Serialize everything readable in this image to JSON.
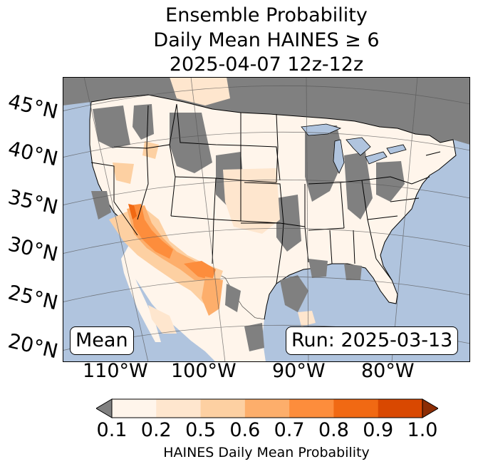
{
  "title": {
    "line1": "Ensemble Probability",
    "line2": "Daily Mean HAINES ≥ 6",
    "line3": "2025-04-07 12z-12z"
  },
  "map": {
    "latitude_labels": [
      "45°N",
      "40°N",
      "35°N",
      "30°N",
      "25°N",
      "20°N"
    ],
    "longitude_labels": [
      "110°W",
      "100°W",
      "90°W",
      "80°W"
    ],
    "mean_label": "Mean",
    "run_label": "Run: 2025-03-13",
    "colors": {
      "ocean": "#b0c4de",
      "no_data": "#808080",
      "land_low": "#fff5eb"
    }
  },
  "colorbar": {
    "ticks": [
      "0.1",
      "0.2",
      "0.5",
      "0.6",
      "0.7",
      "0.8",
      "0.9",
      "1.0"
    ],
    "colors": [
      "#fff5eb",
      "#fee6ce",
      "#fdd0a2",
      "#fdae6b",
      "#fd8d3c",
      "#f16913",
      "#d94801"
    ],
    "under_color": "#808080",
    "over_color": "#8c2d04",
    "label": "HAINES Daily Mean Probability"
  }
}
